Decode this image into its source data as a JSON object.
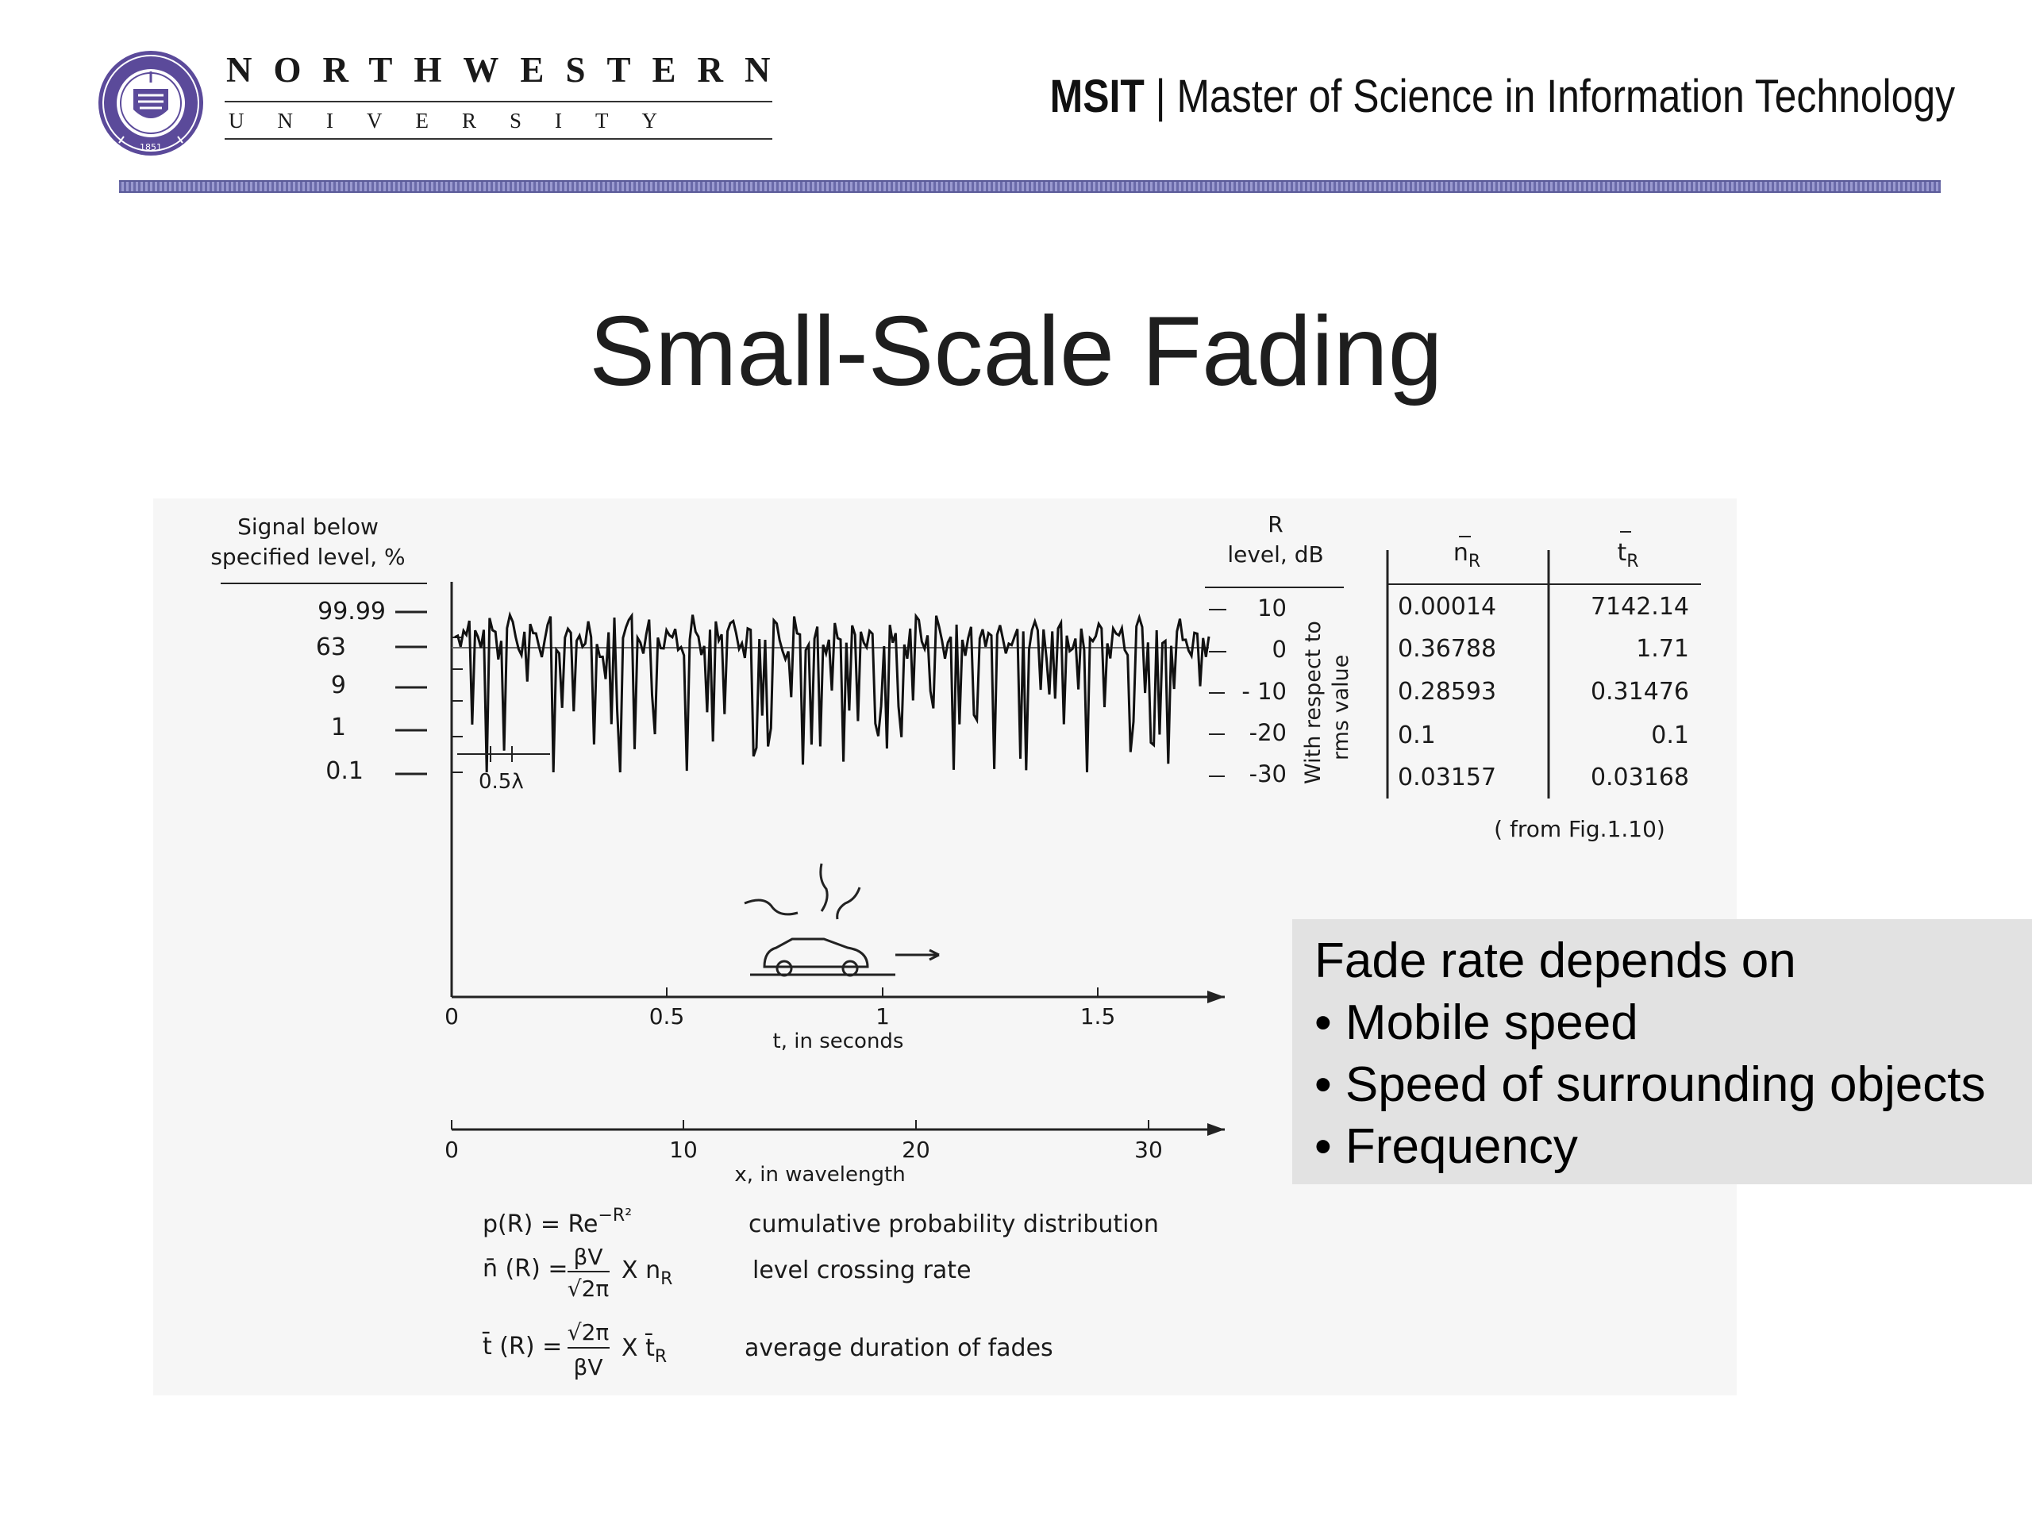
{
  "header": {
    "university_name": "NORTHWESTERN",
    "university_sub": "UNIVERSITY",
    "program_abbr": "MSIT",
    "separator": " | ",
    "program_full": "Master of Science in Information Technology",
    "bar_color": "#7a7ab8"
  },
  "slide": {
    "title": "Small-Scale Fading"
  },
  "figure": {
    "left_axis_title_1": "Signal below",
    "left_axis_title_2": "specified level, %",
    "left_ticks": [
      "99.99",
      "63",
      "9",
      "1",
      "0.1"
    ],
    "right_axis_title_1": "R",
    "right_axis_title_2": "level, dB",
    "right_ticks": [
      "10",
      "0",
      "- 10",
      "-20",
      "-30"
    ],
    "right_axis_note_1": "With respect to",
    "right_axis_note_2": "rms value",
    "table_head_n": "n",
    "table_head_t": "t",
    "table_head_sub": "R",
    "table_n": [
      "0.00014",
      "0.36788",
      "0.28593",
      "0.1",
      "0.03157"
    ],
    "table_t": [
      "7142.14",
      "1.71",
      "0.31476",
      "0.1",
      "0.03168"
    ],
    "table_source": "( from Fig.1.10)",
    "wavelength_marker": "0.5λ",
    "time_ticks": [
      "0",
      "0.5",
      "1",
      "1.5"
    ],
    "time_label": "t, in seconds",
    "x_ticks": [
      "0",
      "10",
      "20",
      "30"
    ],
    "x_label": "x, in wavelength",
    "eq1_lhs": "p(R) = Re",
    "eq1_exp": "−R²",
    "eq1_desc": "cumulative probability distribution",
    "eq2_lhs": "n̄ (R) =",
    "eq2_num": "βV",
    "eq2_den": "√2π",
    "eq2_mult": "X  n",
    "eq2_sub": "R",
    "eq2_desc": "level crossing rate",
    "eq3_lhs": "t̄ (R) =",
    "eq3_num": "√2π",
    "eq3_den": "βV",
    "eq3_mult": "X  t̄",
    "eq3_sub": "R",
    "eq3_desc": "average duration of fades"
  },
  "callout": {
    "heading": "Fade rate depends on",
    "items": [
      "• Mobile speed",
      "• Speed of surrounding objects",
      "• Frequency"
    ]
  }
}
